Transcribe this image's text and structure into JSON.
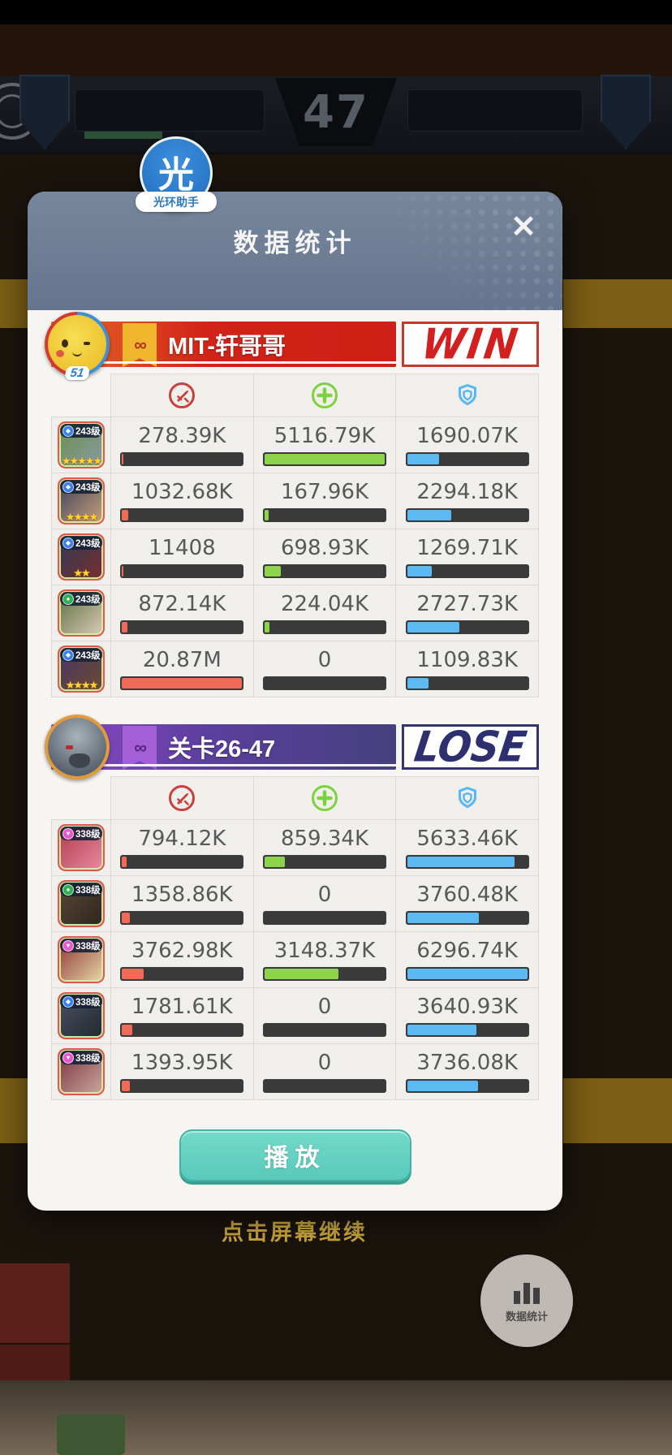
{
  "background": {
    "round_number": "47",
    "continue_hint": "点击屏幕继续",
    "stats_fab_label": "数据统计"
  },
  "assistant_fab": {
    "glyph": "光",
    "label": "光环助手",
    "color": "#2a77c8"
  },
  "dialog": {
    "title": "数据统计",
    "close_icon": "✕",
    "play_label": "播放",
    "columns": [
      {
        "key": "damage_taken",
        "icon": "sword-circle-icon",
        "color": "#c8403c"
      },
      {
        "key": "healing",
        "icon": "plus-circle-icon",
        "color": "#7ed13e"
      },
      {
        "key": "damage_dealt",
        "icon": "shield-icon",
        "color": "#57b7f2"
      }
    ],
    "bar_colors": {
      "damage": "#ef6a57",
      "heal": "#8ed44a",
      "dealt": "#5cb9f2"
    },
    "teams": [
      {
        "name": "MIT-轩哥哥",
        "result": "WIN",
        "result_color": "#d21f1f",
        "leader_badge": "51",
        "rows": [
          {
            "level": "243级",
            "element": "diamond",
            "element_color": "#3b7fe8",
            "stars": 5,
            "avatar_colors": [
              "#6a8f4a",
              "#8a9aa5"
            ],
            "damage": "278.39K",
            "damage_pct": 1.3,
            "heal": "5116.79K",
            "heal_pct": 100,
            "dealt": "1690.07K",
            "dealt_pct": 26.8
          },
          {
            "level": "243级",
            "element": "diamond",
            "element_color": "#3b7fe8",
            "stars": 4,
            "avatar_colors": [
              "#3a3f5a",
              "#c9a17a"
            ],
            "damage": "1032.68K",
            "damage_pct": 4.9,
            "heal": "167.96K",
            "heal_pct": 3.3,
            "dealt": "2294.18K",
            "dealt_pct": 36.4
          },
          {
            "level": "243级",
            "element": "diamond",
            "element_color": "#3b7fe8",
            "stars": 2,
            "avatar_colors": [
              "#2c3a55",
              "#7a2e2e"
            ],
            "damage": "11408",
            "damage_pct": 0.05,
            "heal": "698.93K",
            "heal_pct": 13.7,
            "dealt": "1269.71K",
            "dealt_pct": 20.2
          },
          {
            "level": "243级",
            "element": "spade",
            "element_color": "#2fae52",
            "stars": 0,
            "avatar_colors": [
              "#5d6b3c",
              "#d8cdb8"
            ],
            "damage": "872.14K",
            "damage_pct": 4.2,
            "heal": "224.04K",
            "heal_pct": 4.4,
            "dealt": "2727.73K",
            "dealt_pct": 43.3
          },
          {
            "level": "243级",
            "element": "diamond",
            "element_color": "#3b7fe8",
            "stars": 4,
            "avatar_colors": [
              "#4a3566",
              "#6b4a2e"
            ],
            "damage": "20.87M",
            "damage_pct": 100,
            "heal": "0",
            "heal_pct": 0,
            "dealt": "1109.83K",
            "dealt_pct": 17.6
          }
        ]
      },
      {
        "name": "关卡26-47",
        "result": "LOSE",
        "result_color": "#2d2f6e",
        "leader_badge": "",
        "rows": [
          {
            "level": "338级",
            "element": "heart",
            "element_color": "#e45ad0",
            "stars": 0,
            "avatar_colors": [
              "#b03a4a",
              "#e88aa0"
            ],
            "damage": "794.12K",
            "damage_pct": 3.8,
            "heal": "859.34K",
            "heal_pct": 16.8,
            "dealt": "5633.46K",
            "dealt_pct": 89.5
          },
          {
            "level": "338级",
            "element": "spade",
            "element_color": "#2fae52",
            "stars": 0,
            "avatar_colors": [
              "#5a4632",
              "#2e2620"
            ],
            "damage": "1358.86K",
            "damage_pct": 6.5,
            "heal": "0",
            "heal_pct": 0,
            "dealt": "3760.48K",
            "dealt_pct": 59.7
          },
          {
            "level": "338级",
            "element": "heart",
            "element_color": "#e45ad0",
            "stars": 0,
            "avatar_colors": [
              "#8a3030",
              "#e8d9a8"
            ],
            "damage": "3762.98K",
            "damage_pct": 18,
            "heal": "3148.37K",
            "heal_pct": 61.5,
            "dealt": "6296.74K",
            "dealt_pct": 100
          },
          {
            "level": "338级",
            "element": "diamond",
            "element_color": "#3b7fe8",
            "stars": 0,
            "avatar_colors": [
              "#4a5260",
              "#232830"
            ],
            "damage": "1781.61K",
            "damage_pct": 8.5,
            "heal": "0",
            "heal_pct": 0,
            "dealt": "3640.93K",
            "dealt_pct": 57.8
          },
          {
            "level": "338级",
            "element": "heart",
            "element_color": "#e45ad0",
            "stars": 0,
            "avatar_colors": [
              "#7a2f3a",
              "#caa9a0"
            ],
            "damage": "1393.95K",
            "damage_pct": 6.7,
            "heal": "0",
            "heal_pct": 0,
            "dealt": "3736.08K",
            "dealt_pct": 59.3
          }
        ]
      }
    ]
  }
}
